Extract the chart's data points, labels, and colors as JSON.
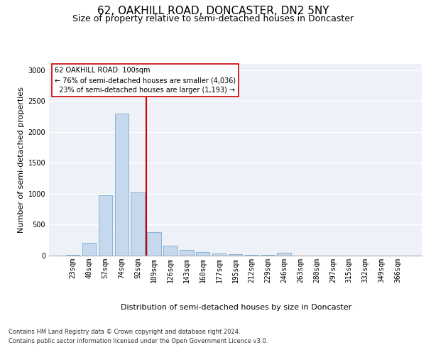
{
  "title": "62, OAKHILL ROAD, DONCASTER, DN2 5NY",
  "subtitle": "Size of property relative to semi-detached houses in Doncaster",
  "xlabel": "Distribution of semi-detached houses by size in Doncaster",
  "ylabel": "Number of semi-detached properties",
  "categories": [
    "23sqm",
    "40sqm",
    "57sqm",
    "74sqm",
    "92sqm",
    "109sqm",
    "126sqm",
    "143sqm",
    "160sqm",
    "177sqm",
    "195sqm",
    "212sqm",
    "229sqm",
    "246sqm",
    "263sqm",
    "280sqm",
    "297sqm",
    "315sqm",
    "332sqm",
    "349sqm",
    "366sqm"
  ],
  "values": [
    15,
    210,
    980,
    2300,
    1020,
    380,
    165,
    90,
    55,
    35,
    20,
    15,
    10,
    45,
    5,
    5,
    5,
    5,
    5,
    5,
    5
  ],
  "bar_color": "#c5d8ed",
  "bar_edge_color": "#6a9fc8",
  "property_label": "62 OAKHILL ROAD: 100sqm",
  "pct_smaller": 76,
  "pct_larger": 23,
  "n_smaller": 4036,
  "n_larger": 1193,
  "vline_color": "#cc0000",
  "box_color": "#cc0000",
  "footer_line1": "Contains HM Land Registry data © Crown copyright and database right 2024.",
  "footer_line2": "Contains public sector information licensed under the Open Government Licence v3.0.",
  "ylim": [
    0,
    3100
  ],
  "yticks": [
    0,
    500,
    1000,
    1500,
    2000,
    2500,
    3000
  ],
  "bg_color": "#eef2f8",
  "grid_color": "#ffffff",
  "title_fontsize": 11,
  "subtitle_fontsize": 9,
  "axis_label_fontsize": 8,
  "tick_fontsize": 7,
  "footer_fontsize": 6
}
